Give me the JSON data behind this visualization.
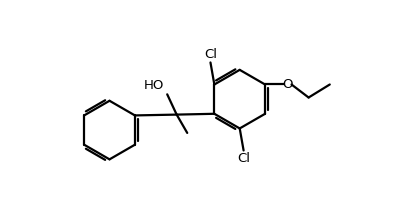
{
  "background_color": "#ffffff",
  "line_color": "#000000",
  "line_width": 1.6,
  "figsize": [
    3.94,
    2.17
  ],
  "dpi": 100,
  "xlim": [
    -3.8,
    4.8
  ],
  "ylim": [
    -2.5,
    2.8
  ],
  "bl": 1.0
}
